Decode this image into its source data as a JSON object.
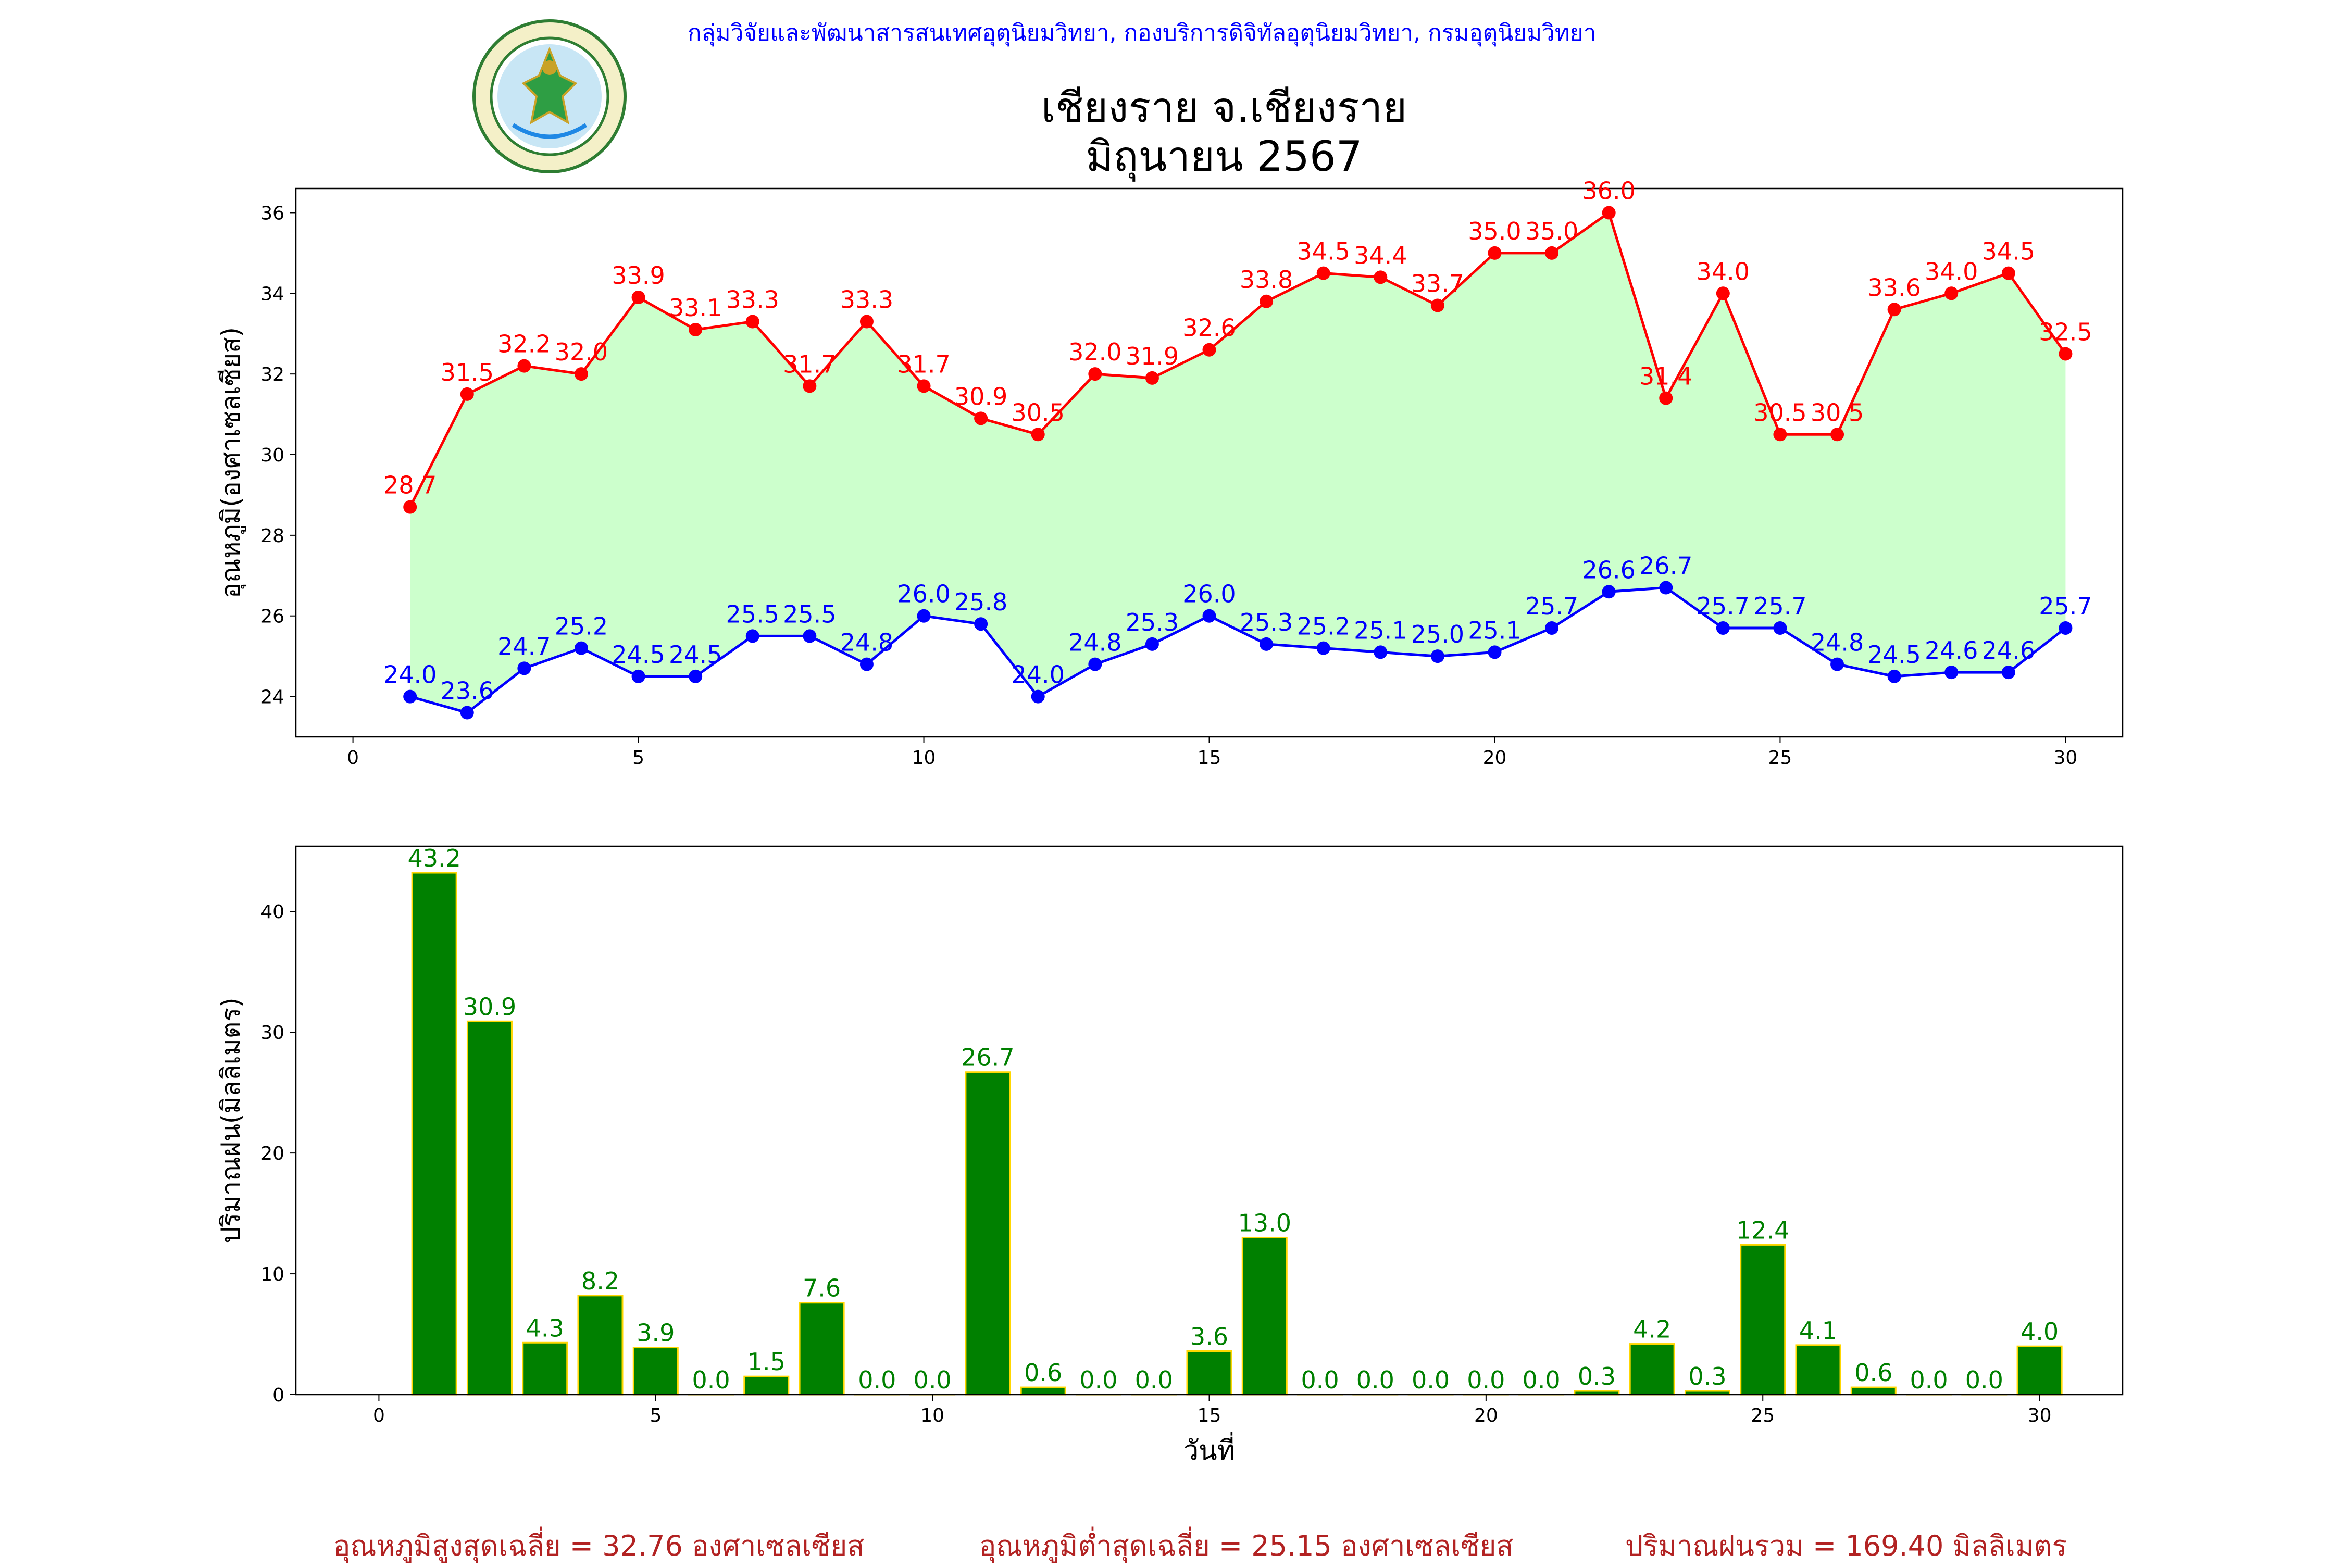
{
  "header": {
    "department_line": "กลุ่มวิจัยและพัฒนาสารสนเทศอุตุนิยมวิทยา, กองบริการดิจิทัลอุตุนิยมวิทยา, กรมอุตุนิยมวิทยา",
    "title_line1": "เชียงราย จ.เชียงราย",
    "title_line2": "มิถุนายน 2567",
    "logo_text": "กรมอุตุนิยมวิทยา METEOROLOGICAL DEPARTMENT"
  },
  "colors": {
    "max_line": "#ff0000",
    "min_line": "#0000ff",
    "fill": "#ccffcc",
    "bar_fill": "#008000",
    "bar_edge": "#ffd700",
    "bar_label": "#008000",
    "stats": "#b22222"
  },
  "chart_data": [
    {
      "type": "line",
      "ylabel": "อุณหภูมิ(องศาเซลเซียส)",
      "xlim": [
        -1,
        31
      ],
      "ylim": [
        23,
        36.6
      ],
      "xticks": [
        0,
        5,
        10,
        15,
        20,
        25,
        30
      ],
      "yticks": [
        24,
        26,
        28,
        30,
        32,
        34,
        36
      ],
      "x": [
        1,
        2,
        3,
        4,
        5,
        6,
        7,
        8,
        9,
        10,
        11,
        12,
        13,
        14,
        15,
        16,
        17,
        18,
        19,
        20,
        21,
        22,
        23,
        24,
        25,
        26,
        27,
        28,
        29,
        30
      ],
      "fill_between": true,
      "series": [
        {
          "values": [
            28.7,
            31.5,
            32.2,
            32.0,
            33.9,
            33.1,
            33.3,
            31.7,
            33.3,
            31.7,
            30.9,
            30.5,
            32.0,
            31.9,
            32.6,
            33.8,
            34.5,
            34.4,
            33.7,
            35.0,
            35.0,
            36.0,
            31.4,
            34.0,
            30.5,
            30.5,
            33.6,
            34.0,
            34.5,
            32.5
          ]
        },
        {
          "values": [
            24.0,
            23.6,
            24.7,
            25.2,
            24.5,
            24.5,
            25.5,
            25.5,
            24.8,
            26.0,
            25.8,
            24.0,
            24.8,
            25.3,
            26.0,
            25.3,
            25.2,
            25.1,
            25.0,
            25.1,
            25.7,
            26.6,
            26.7,
            25.7,
            25.7,
            24.8,
            24.5,
            24.6,
            24.6,
            25.7
          ]
        }
      ]
    },
    {
      "type": "bar",
      "xlabel": "วันที่",
      "ylabel": "ปริมาณฝน(มิลลิเมตร)",
      "xlim": [
        -1.5,
        31.5
      ],
      "ylim": [
        0,
        45.4
      ],
      "xticks": [
        0,
        5,
        10,
        15,
        20,
        25,
        30
      ],
      "yticks": [
        0,
        10,
        20,
        30,
        40
      ],
      "x": [
        1,
        2,
        3,
        4,
        5,
        6,
        7,
        8,
        9,
        10,
        11,
        12,
        13,
        14,
        15,
        16,
        17,
        18,
        19,
        20,
        21,
        22,
        23,
        24,
        25,
        26,
        27,
        28,
        29,
        30
      ],
      "values": [
        43.2,
        30.9,
        4.3,
        8.2,
        3.9,
        0.0,
        1.5,
        7.6,
        0.0,
        0.0,
        26.7,
        0.6,
        0.0,
        0.0,
        3.6,
        13.0,
        0.0,
        0.0,
        0.0,
        0.0,
        0.0,
        0.3,
        4.2,
        0.3,
        12.4,
        4.1,
        0.6,
        0.0,
        0.0,
        4.0
      ]
    }
  ],
  "stats": {
    "avg_max": "อุณหภูมิสูงสุดเฉลี่ย = 32.76 องศาเซลเซียส",
    "avg_min": "อุณหภูมิต่ำสุดเฉลี่ย = 25.15 องศาเซลเซียส",
    "total_rain": "ปริมาณฝนรวม = 169.40 มิลลิเมตร"
  }
}
